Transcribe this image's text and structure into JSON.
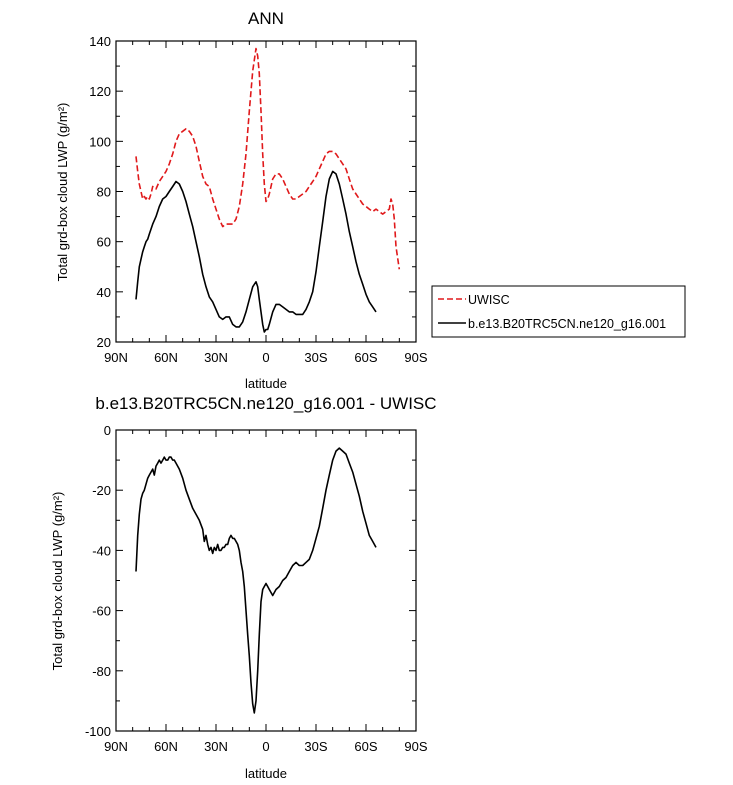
{
  "chart_data": [
    {
      "type": "line",
      "title": "ANN",
      "xlabel": "latitude",
      "ylabel": "Total grd-box cloud LWP (g/m²)",
      "xlim": [
        90,
        -90
      ],
      "ylim": [
        20,
        140
      ],
      "x_ticks": [
        {
          "value": 90,
          "label": "90N"
        },
        {
          "value": 60,
          "label": "60N"
        },
        {
          "value": 30,
          "label": "30N"
        },
        {
          "value": 0,
          "label": "0"
        },
        {
          "value": -30,
          "label": "30S"
        },
        {
          "value": -60,
          "label": "60S"
        },
        {
          "value": -90,
          "label": "90S"
        }
      ],
      "y_ticks": [
        20,
        40,
        60,
        80,
        100,
        120,
        140
      ],
      "legend": "right",
      "series": [
        {
          "name": "UWISC",
          "color": "#e0191b",
          "dash": "dashed",
          "x": [
            78,
            77,
            76,
            75,
            74,
            73,
            72,
            71,
            70,
            69,
            68,
            66,
            64,
            62,
            60,
            58,
            56,
            54,
            52,
            50,
            48,
            46,
            44,
            42,
            40,
            38,
            36,
            34,
            32,
            30,
            28,
            26,
            24,
            22,
            20,
            18,
            16,
            14,
            12,
            10,
            8,
            6,
            5,
            4,
            3,
            2,
            1,
            0,
            -1,
            -2,
            -4,
            -6,
            -8,
            -10,
            -12,
            -14,
            -16,
            -18,
            -20,
            -22,
            -24,
            -26,
            -28,
            -30,
            -32,
            -34,
            -36,
            -38,
            -40,
            -42,
            -44,
            -46,
            -48,
            -50,
            -52,
            -54,
            -56,
            -58,
            -60,
            -62,
            -64,
            -66,
            -68,
            -70,
            -72,
            -74,
            -75,
            -76,
            -77,
            -78
          ],
          "values": [
            94,
            88,
            83,
            80,
            77,
            78,
            77,
            78,
            77,
            79,
            82,
            81,
            84,
            86,
            88,
            91,
            95,
            100,
            103,
            104,
            105,
            104,
            102,
            98,
            92,
            86,
            83,
            82,
            77,
            73,
            69,
            66,
            67,
            67,
            67,
            69,
            74,
            83,
            95,
            112,
            128,
            137,
            134,
            127,
            112,
            95,
            83,
            76,
            77,
            79,
            85,
            87,
            87,
            85,
            82,
            79,
            77,
            77,
            78,
            79,
            80,
            82,
            84,
            86,
            89,
            92,
            95,
            96,
            96,
            95,
            93,
            91,
            89,
            85,
            81,
            79,
            77,
            75,
            74,
            73,
            72,
            73,
            72,
            71,
            72,
            73,
            77,
            75,
            69,
            58
          ],
          "end_x": -80,
          "end_value": 49
        },
        {
          "name": "b.e13.B20TRC5CN.ne120_g16.001",
          "color": "#000000",
          "dash": "solid",
          "x": [
            78,
            77,
            76,
            75,
            74,
            73,
            72,
            71,
            70,
            69,
            68,
            66,
            64,
            62,
            60,
            58,
            56,
            54,
            52,
            50,
            48,
            46,
            44,
            42,
            40,
            38,
            36,
            34,
            32,
            30,
            28,
            26,
            24,
            22,
            20,
            18,
            16,
            14,
            12,
            10,
            8,
            6,
            5,
            4,
            3,
            2,
            1,
            0,
            -1,
            -2,
            -4,
            -6,
            -8,
            -10,
            -12,
            -14,
            -16,
            -18,
            -20,
            -22,
            -24,
            -26,
            -28,
            -30,
            -32,
            -34,
            -36,
            -38,
            -40,
            -42,
            -44,
            -46,
            -48,
            -50,
            -52,
            -54,
            -56,
            -58,
            -60,
            -62,
            -64,
            -66
          ],
          "values": [
            37,
            44,
            50,
            53,
            56,
            58,
            60,
            61,
            63,
            65,
            67,
            70,
            74,
            77,
            78,
            80,
            82,
            84,
            83,
            80,
            76,
            71,
            66,
            60,
            54,
            47,
            42,
            38,
            36,
            33,
            30,
            29,
            30,
            30,
            27,
            26,
            26,
            28,
            32,
            37,
            42,
            44,
            42,
            37,
            32,
            27,
            24,
            25,
            25,
            27,
            32,
            35,
            35,
            34,
            33,
            32,
            32,
            31,
            31,
            31,
            33,
            36,
            40,
            48,
            58,
            68,
            78,
            85,
            88,
            87,
            83,
            77,
            71,
            64,
            58,
            52,
            47,
            43,
            39,
            36,
            34,
            32
          ]
        }
      ]
    },
    {
      "type": "line",
      "title": "b.e13.B20TRC5CN.ne120_g16.001 - UWISC",
      "xlabel": "latitude",
      "ylabel": "Total grd-box cloud LWP (g/m²)",
      "xlim": [
        90,
        -90
      ],
      "ylim": [
        -100,
        0
      ],
      "x_ticks": [
        {
          "value": 90,
          "label": "90N"
        },
        {
          "value": 60,
          "label": "60N"
        },
        {
          "value": 30,
          "label": "30N"
        },
        {
          "value": 0,
          "label": "0"
        },
        {
          "value": -30,
          "label": "30S"
        },
        {
          "value": -60,
          "label": "60S"
        },
        {
          "value": -90,
          "label": "90S"
        }
      ],
      "y_ticks": [
        -100,
        -80,
        -60,
        -40,
        -20,
        0
      ],
      "series": [
        {
          "name": "",
          "color": "#000000",
          "dash": "solid",
          "x": [
            78,
            77,
            76,
            75,
            74,
            73,
            72,
            71,
            70,
            69,
            68,
            67,
            66,
            65,
            64,
            63,
            62,
            61,
            60,
            59,
            58,
            57,
            56,
            55,
            54,
            52,
            50,
            48,
            46,
            44,
            42,
            40,
            38,
            37,
            36,
            35,
            34,
            33,
            32,
            31,
            30,
            29,
            28,
            27,
            26,
            25,
            24,
            23,
            22,
            21,
            20,
            19,
            18,
            17,
            16,
            15,
            14,
            13,
            12,
            11,
            10,
            9,
            8,
            7,
            6,
            5,
            4,
            3,
            2,
            1,
            0,
            -1,
            -2,
            -3,
            -4,
            -6,
            -8,
            -10,
            -12,
            -14,
            -16,
            -18,
            -20,
            -22,
            -24,
            -26,
            -28,
            -30,
            -32,
            -34,
            -36,
            -38,
            -40,
            -42,
            -44,
            -46,
            -48,
            -50,
            -52,
            -54,
            -56,
            -58,
            -60,
            -62,
            -64,
            -66
          ],
          "values": [
            -47,
            -35,
            -28,
            -23,
            -21,
            -20,
            -18,
            -16,
            -15,
            -14,
            -13,
            -15,
            -12,
            -11,
            -10,
            -11,
            -10,
            -9,
            -10,
            -10,
            -9,
            -9,
            -10,
            -10,
            -11,
            -13,
            -16,
            -20,
            -23,
            -26,
            -28,
            -30,
            -33,
            -37,
            -35,
            -38,
            -40,
            -39,
            -41,
            -39,
            -40,
            -38,
            -40,
            -40,
            -39,
            -39,
            -38,
            -38,
            -36,
            -35,
            -36,
            -36,
            -37,
            -38,
            -40,
            -44,
            -47,
            -52,
            -60,
            -68,
            -75,
            -84,
            -91,
            -94,
            -90,
            -80,
            -68,
            -57,
            -53,
            -52,
            -51,
            -52,
            -53,
            -54,
            -55,
            -53,
            -52,
            -50,
            -49,
            -47,
            -45,
            -44,
            -45,
            -45,
            -44,
            -43,
            -40,
            -36,
            -32,
            -26,
            -20,
            -15,
            -10,
            -7,
            -6,
            -7,
            -8,
            -11,
            -14,
            -18,
            -22,
            -27,
            -31,
            -35,
            -37,
            -39
          ]
        }
      ]
    }
  ]
}
